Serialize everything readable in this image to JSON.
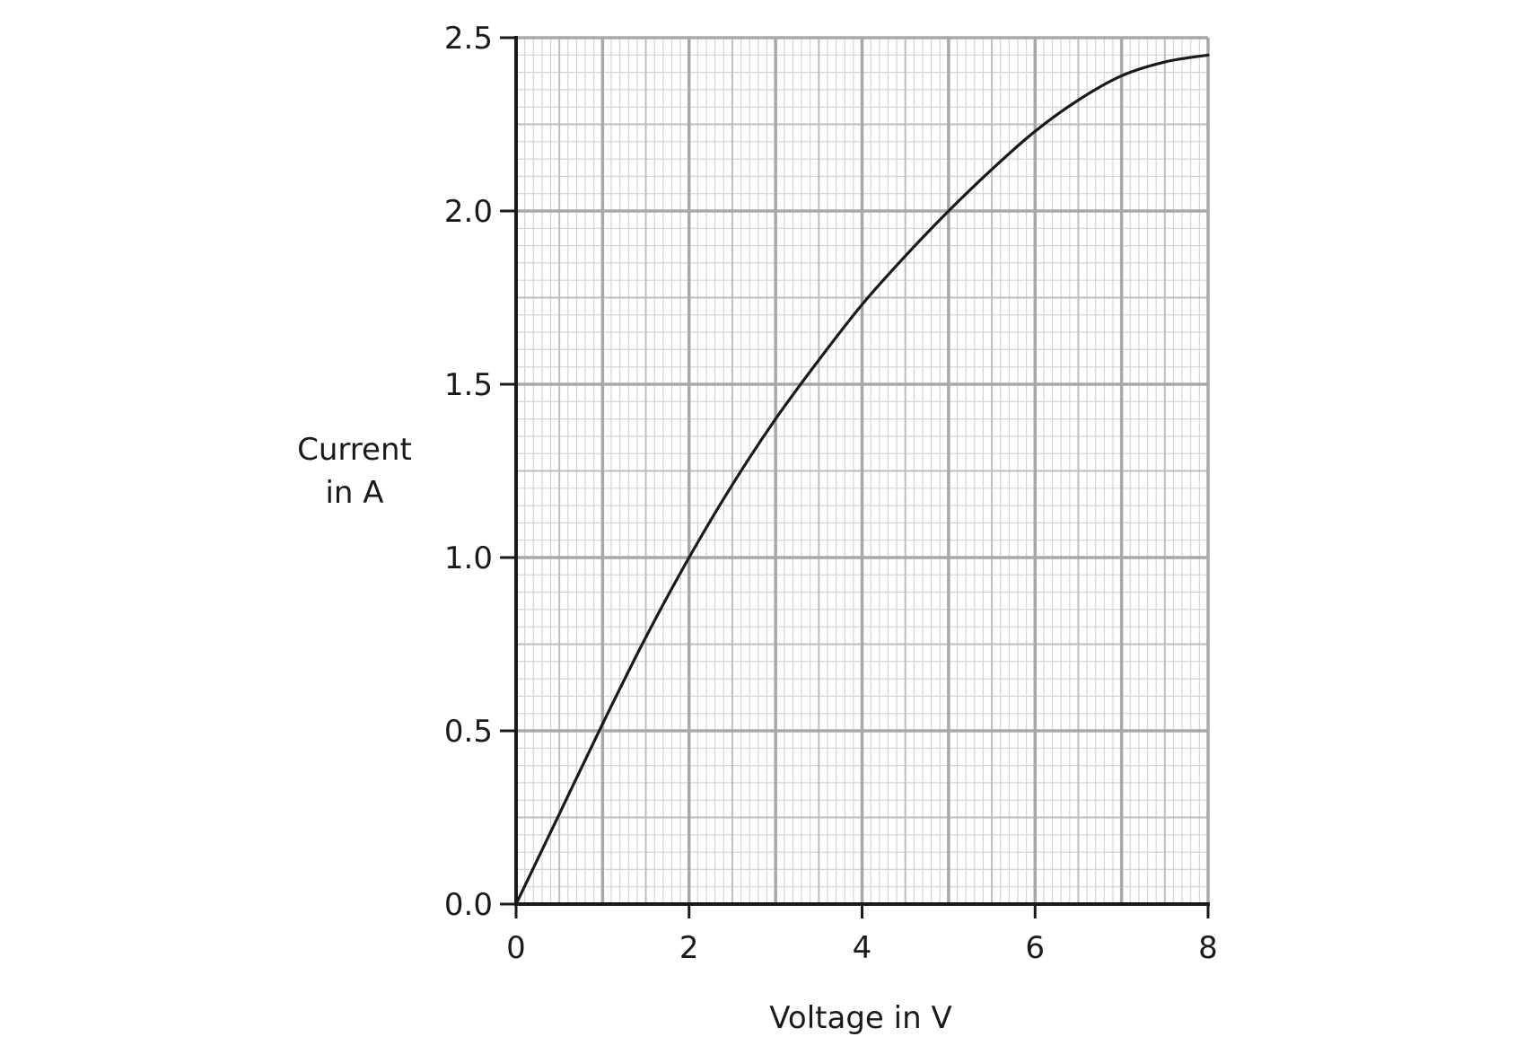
{
  "chart_data": {
    "type": "line",
    "title": "",
    "xlabel": "Voltage in V",
    "ylabel_lines": [
      "Current",
      "in A"
    ],
    "xlim": [
      0,
      8
    ],
    "ylim": [
      0,
      2.5
    ],
    "x_ticks": [
      0,
      2,
      4,
      6,
      8
    ],
    "x_tick_labels": [
      "0",
      "2",
      "4",
      "6",
      "8"
    ],
    "y_ticks": [
      0,
      0.5,
      1.0,
      1.5,
      2.0,
      2.5
    ],
    "y_tick_labels": [
      "0.0",
      "0.5",
      "1.0",
      "1.5",
      "2.0",
      "2.5"
    ],
    "grid": true,
    "legend": "none",
    "series": [
      {
        "color": "#1a1a1a",
        "x": [
          0,
          0.5,
          1,
          1.5,
          2,
          2.5,
          3,
          3.5,
          4,
          4.5,
          5,
          5.5,
          6,
          6.5,
          7,
          7.5,
          8
        ],
        "y": [
          0,
          0.26,
          0.52,
          0.77,
          1.0,
          1.21,
          1.4,
          1.57,
          1.73,
          1.87,
          2.0,
          2.12,
          2.23,
          2.32,
          2.39,
          2.43,
          2.45
        ]
      }
    ]
  }
}
